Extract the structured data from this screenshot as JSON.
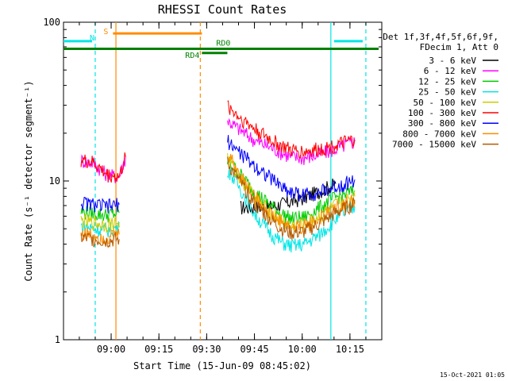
{
  "chart_data": {
    "type": "line",
    "title": "RHESSI Count Rates",
    "xlabel": "Start Time (15-Jun-09 08:45:02)",
    "ylabel": "Count Rate (s⁻¹ detector segment⁻¹)",
    "y_scale": "log",
    "ylim": [
      1,
      100
    ],
    "xlim": [
      "08:45:02",
      "10:25:00"
    ],
    "y_ticks": [
      "1",
      "10",
      "100"
    ],
    "x_ticks": [
      "09:00",
      "09:15",
      "09:30",
      "09:45",
      "10:00",
      "10:15"
    ],
    "legend_position": "right",
    "legend_header": [
      "Det 1f,3f,4f,5f,6f,9f,",
      "FDecim 1, Att 0"
    ],
    "series": [
      {
        "name": "3 - 6 keV",
        "color": "#000000",
        "values": [
          [
            0,
            null
          ],
          [
            10,
            null
          ],
          [
            50,
            6.8
          ],
          [
            60,
            6.9
          ],
          [
            70,
            7.8
          ],
          [
            80,
            9.6
          ]
        ]
      },
      {
        "name": "6 - 12 keV",
        "color": "#ff00ff",
        "values": [
          [
            0,
            13.5
          ],
          [
            4,
            13.0
          ],
          [
            8,
            11.0
          ],
          [
            12,
            10.6
          ],
          [
            14,
            14.2
          ],
          [
            46,
            24
          ],
          [
            50,
            21
          ],
          [
            55,
            17.8
          ],
          [
            60,
            16.2
          ],
          [
            63,
            15.1
          ],
          [
            66,
            14.2
          ],
          [
            70,
            14.0
          ],
          [
            75,
            14.7
          ],
          [
            80,
            16.0
          ],
          [
            86,
            17.8
          ]
        ]
      },
      {
        "name": "12 - 25 keV",
        "color": "#00cc00",
        "values": [
          [
            0,
            6.4
          ],
          [
            8,
            6.1
          ],
          [
            12,
            6.3
          ],
          [
            46,
            13.5
          ],
          [
            50,
            11.0
          ],
          [
            55,
            8.4
          ],
          [
            60,
            6.9
          ],
          [
            63,
            6.2
          ],
          [
            66,
            5.8
          ],
          [
            70,
            5.9
          ],
          [
            75,
            6.8
          ],
          [
            80,
            7.9
          ],
          [
            86,
            8.7
          ]
        ]
      },
      {
        "name": "25 - 50 keV",
        "color": "#00e5e5",
        "values": [
          [
            0,
            5.2
          ],
          [
            8,
            4.9
          ],
          [
            12,
            5.1
          ],
          [
            46,
            12.0
          ],
          [
            50,
            9.0
          ],
          [
            55,
            6.0
          ],
          [
            60,
            4.6
          ],
          [
            63,
            4.1
          ],
          [
            66,
            3.9
          ],
          [
            70,
            4.0
          ],
          [
            75,
            4.6
          ],
          [
            80,
            5.8
          ],
          [
            86,
            6.9
          ]
        ]
      },
      {
        "name": "50 - 100 keV",
        "color": "#cccc00",
        "values": [
          [
            0,
            5.6
          ],
          [
            8,
            5.3
          ],
          [
            12,
            5.5
          ],
          [
            46,
            14.0
          ],
          [
            50,
            10.5
          ],
          [
            55,
            7.6
          ],
          [
            60,
            6.2
          ],
          [
            63,
            5.6
          ],
          [
            66,
            5.2
          ],
          [
            70,
            5.3
          ],
          [
            75,
            6.0
          ],
          [
            80,
            7.0
          ],
          [
            86,
            8.0
          ]
        ]
      },
      {
        "name": "100 - 300 keV",
        "color": "#ff0000",
        "values": [
          [
            0,
            13.5
          ],
          [
            4,
            13.0
          ],
          [
            8,
            11.0
          ],
          [
            12,
            10.6
          ],
          [
            14,
            14.2
          ],
          [
            46,
            30
          ],
          [
            50,
            25
          ],
          [
            55,
            21
          ],
          [
            60,
            18
          ],
          [
            63,
            16.6
          ],
          [
            66,
            15.6
          ],
          [
            70,
            15.3
          ],
          [
            75,
            15.9
          ],
          [
            80,
            16.8
          ],
          [
            86,
            18.2
          ]
        ]
      },
      {
        "name": "300 - 800 keV",
        "color": "#0000ff",
        "values": [
          [
            0,
            7.3
          ],
          [
            8,
            6.9
          ],
          [
            12,
            7.1
          ],
          [
            46,
            18.0
          ],
          [
            50,
            15.0
          ],
          [
            55,
            12.3
          ],
          [
            60,
            10.3
          ],
          [
            63,
            9.3
          ],
          [
            66,
            8.5
          ],
          [
            70,
            8.2
          ],
          [
            75,
            8.5
          ],
          [
            80,
            9.2
          ],
          [
            86,
            10.2
          ]
        ]
      },
      {
        "name": "800 - 7000 keV",
        "color": "#ff8c00",
        "values": [
          [
            0,
            4.7
          ],
          [
            8,
            4.4
          ],
          [
            12,
            4.6
          ],
          [
            46,
            15.0
          ],
          [
            50,
            11.0
          ],
          [
            55,
            7.8
          ],
          [
            60,
            6.1
          ],
          [
            63,
            5.5
          ],
          [
            66,
            5.1
          ],
          [
            70,
            5.2
          ],
          [
            75,
            5.8
          ],
          [
            80,
            6.8
          ],
          [
            86,
            7.6
          ]
        ]
      },
      {
        "name": "7000 - 15000 keV",
        "color": "#b35900",
        "values": [
          [
            0,
            4.4
          ],
          [
            8,
            4.2
          ],
          [
            12,
            4.3
          ],
          [
            46,
            13.0
          ],
          [
            50,
            9.8
          ],
          [
            55,
            7.0
          ],
          [
            60,
            5.6
          ],
          [
            63,
            5.0
          ],
          [
            66,
            4.7
          ],
          [
            70,
            4.8
          ],
          [
            75,
            5.4
          ],
          [
            80,
            6.3
          ],
          [
            86,
            7.2
          ]
        ]
      }
    ],
    "flag_bars": [
      {
        "label": "S",
        "color": "#ff8c00",
        "y": 85,
        "x_start": "09:00:35",
        "x_end": "09:28:30"
      },
      {
        "label": "N",
        "color": "#00e5e5",
        "y": 76,
        "x_start": "08:45:02",
        "x_end": "08:54:00"
      },
      {
        "label": "",
        "color": "#00e5e5",
        "y": 76,
        "x_start": "10:10:00",
        "x_end": "10:19:00"
      },
      {
        "label": "RD0",
        "color": "#008000",
        "y": 68,
        "x_start": "08:45:02",
        "x_end": "10:24:00"
      },
      {
        "label": "RD4",
        "color": "#008000",
        "y": 64,
        "x_start": "09:28:30",
        "x_end": "09:36:30"
      }
    ],
    "vertical_lines": [
      {
        "time": "08:55:00",
        "color": "#00e5e5",
        "style": "dashed"
      },
      {
        "time": "09:01:30",
        "color": "#ff8c00",
        "style": "solid"
      },
      {
        "time": "09:28:00",
        "color": "#ff8c00",
        "style": "dashed"
      },
      {
        "time": "10:09:00",
        "color": "#00e5e5",
        "style": "solid"
      },
      {
        "time": "10:20:00",
        "color": "#00e5e5",
        "style": "dashed"
      }
    ],
    "timestamp": "15-Oct-2021 01:05"
  }
}
